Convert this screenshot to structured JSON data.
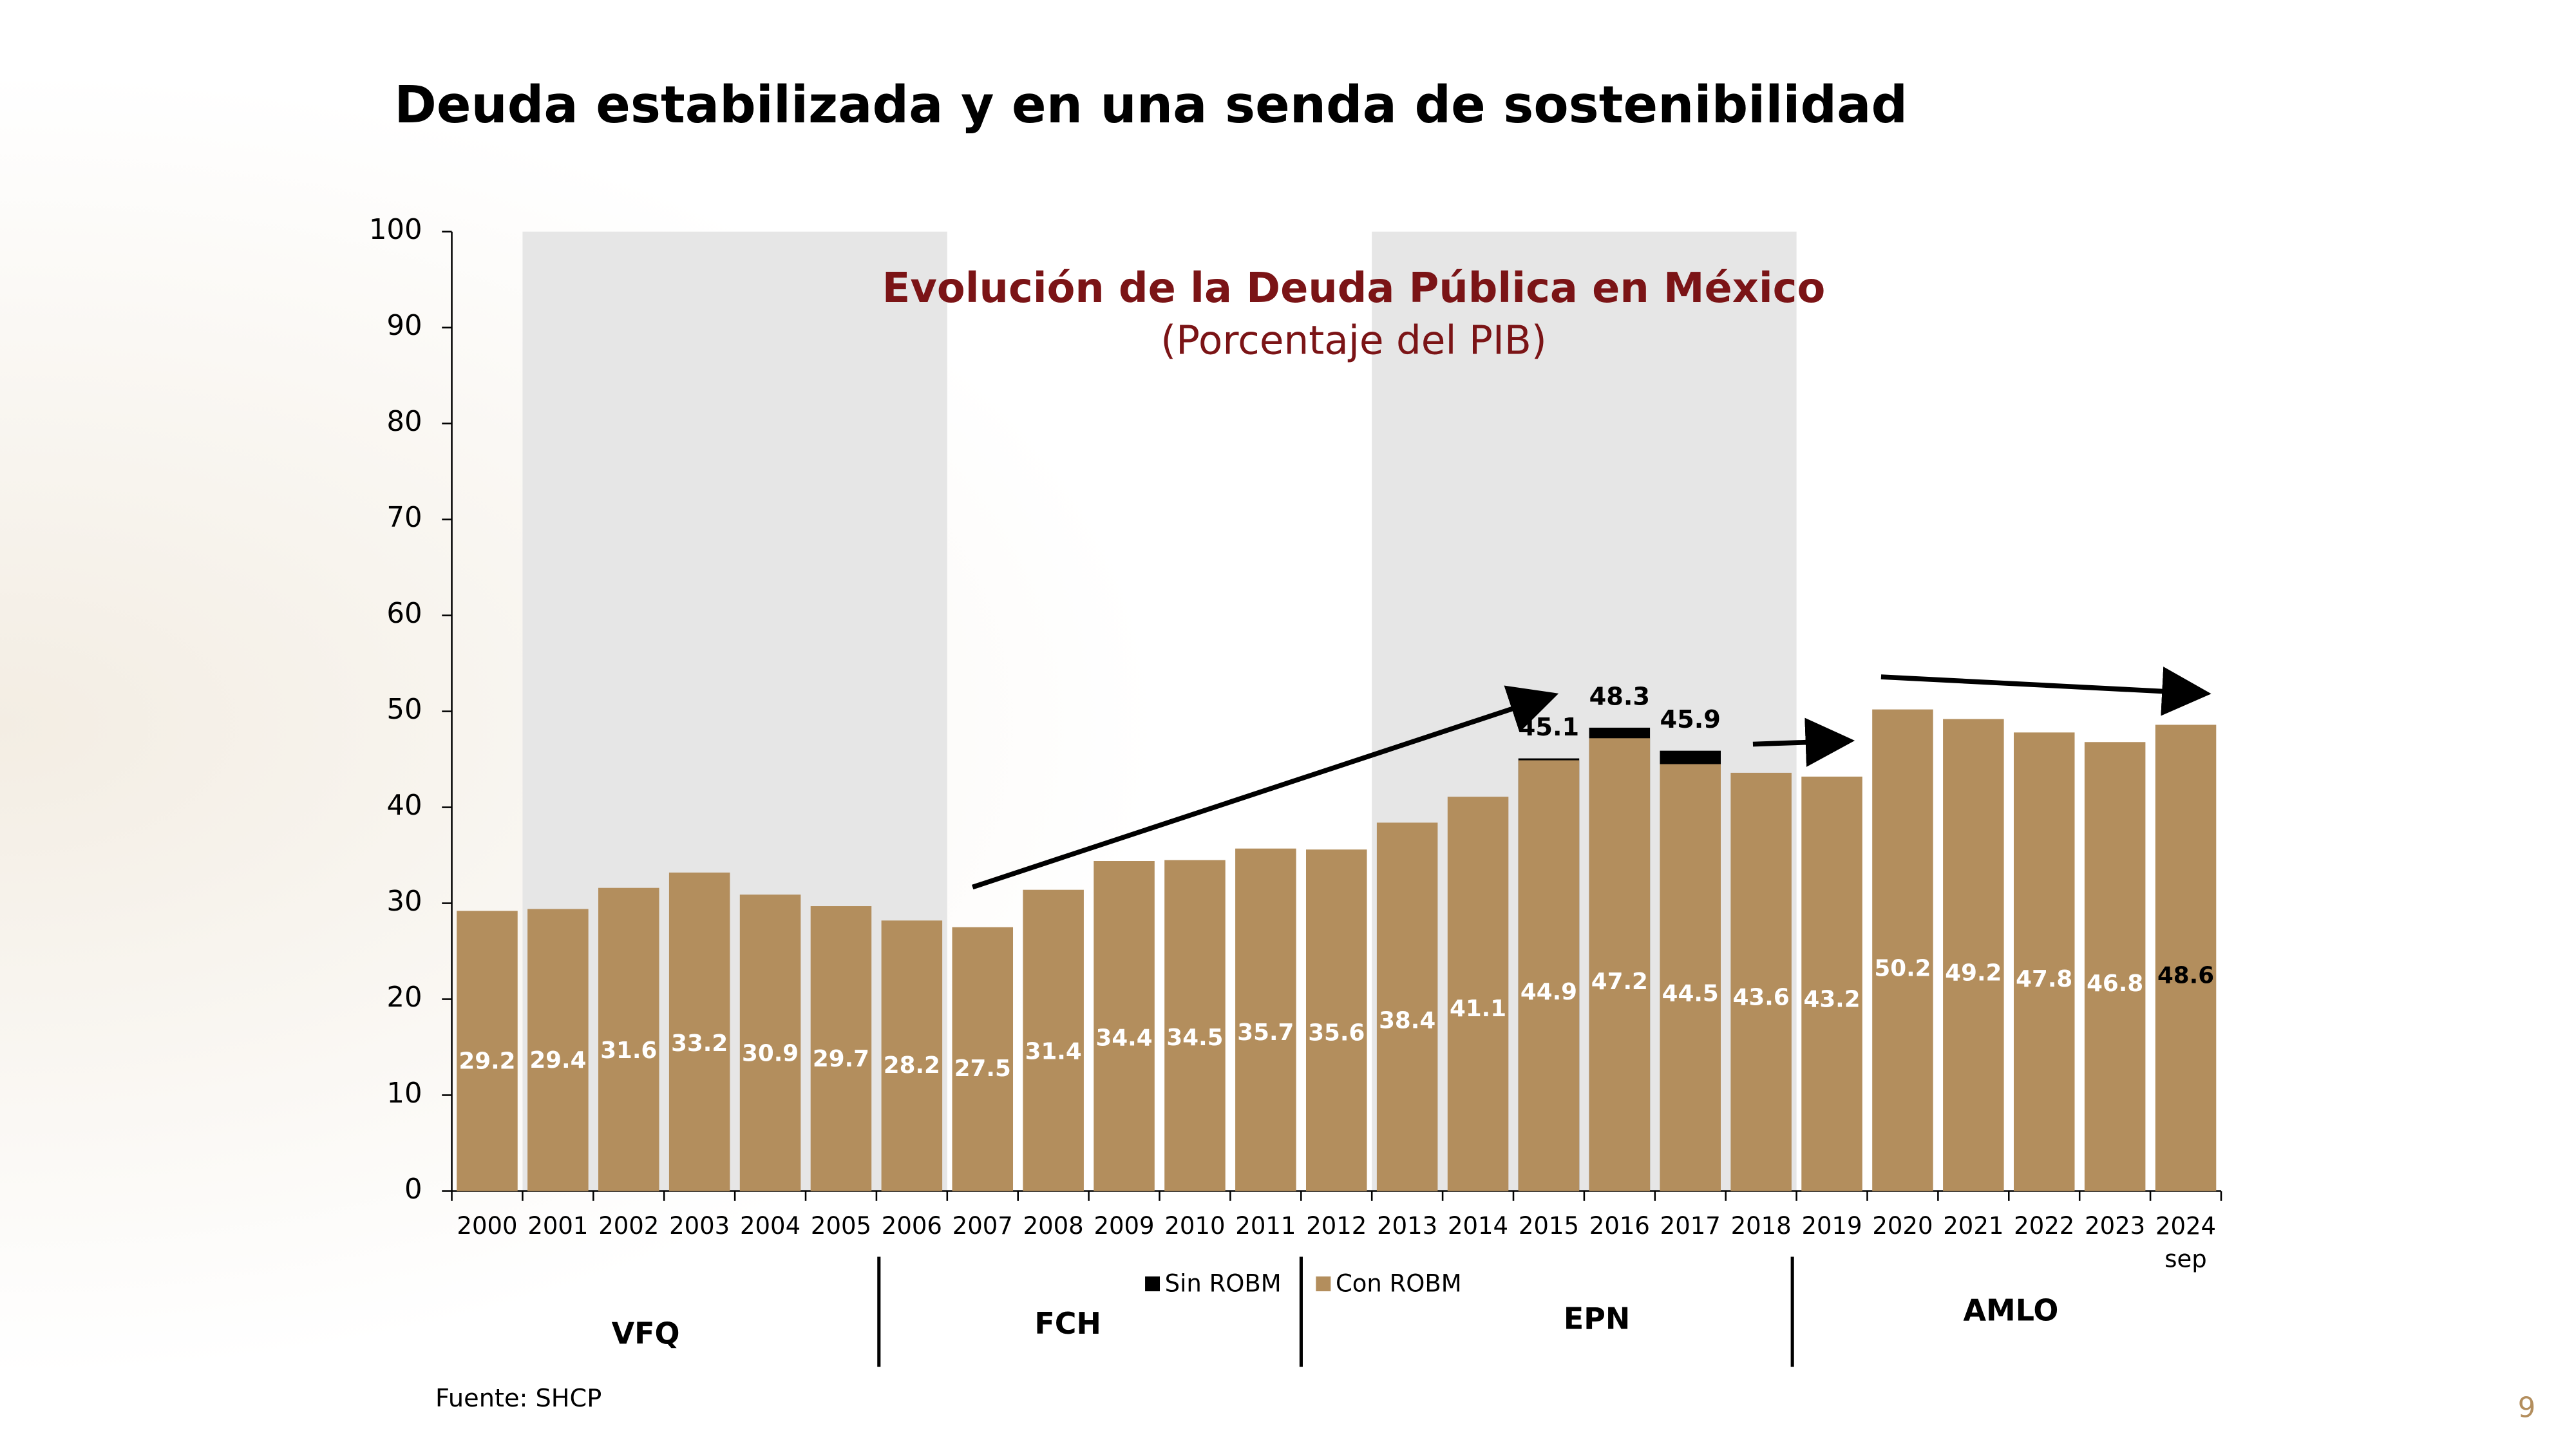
{
  "header": {
    "title": "Deuda estabilizada y en una senda de sostenibilidad"
  },
  "chart_data": {
    "type": "bar",
    "title": "Evolución de la Deuda Pública en México",
    "subtitle": "(Porcentaje del PIB)",
    "categories": [
      "2000",
      "2001",
      "2002",
      "2003",
      "2004",
      "2005",
      "2006",
      "2007",
      "2008",
      "2009",
      "2010",
      "2011",
      "2012",
      "2013",
      "2014",
      "2015",
      "2016",
      "2017",
      "2018",
      "2019",
      "2020",
      "2021",
      "2022",
      "2023",
      "2024 sep"
    ],
    "series": [
      {
        "name": "Sin ROBM",
        "color": "#000000",
        "values": [
          null,
          null,
          null,
          null,
          null,
          null,
          null,
          null,
          null,
          null,
          null,
          null,
          null,
          null,
          null,
          45.1,
          48.3,
          45.9,
          null,
          null,
          null,
          null,
          null,
          null,
          null
        ]
      },
      {
        "name": "Con ROBM",
        "color": "#b38e5d",
        "label_color": "#ffffff",
        "last_label_color": "#000000",
        "values": [
          29.2,
          29.4,
          31.6,
          33.2,
          30.9,
          29.7,
          28.2,
          27.5,
          31.4,
          34.4,
          34.5,
          35.7,
          35.6,
          38.4,
          41.1,
          44.9,
          47.2,
          44.5,
          43.6,
          43.2,
          50.2,
          49.2,
          47.8,
          46.8,
          48.6
        ]
      }
    ],
    "ylim": [
      0,
      100
    ],
    "yticks": [
      0,
      10,
      20,
      30,
      40,
      50,
      60,
      70,
      80,
      90,
      100
    ],
    "periods": [
      "VFQ",
      "FCH",
      "EPN",
      "AMLO"
    ]
  },
  "footer": {
    "source": "Fuente: SHCP",
    "page": "9"
  }
}
